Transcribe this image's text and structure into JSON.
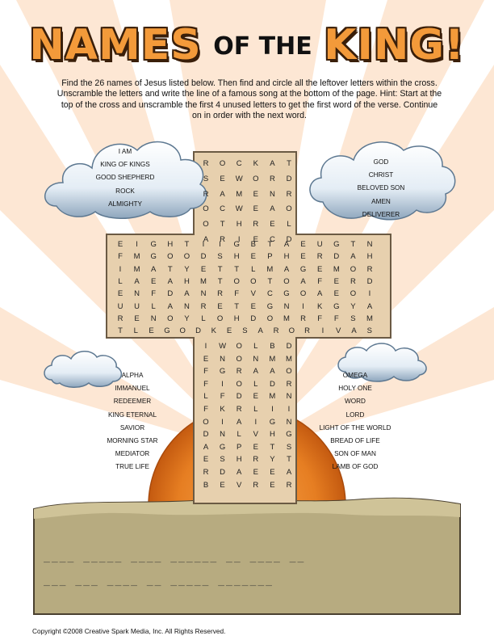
{
  "title": {
    "part1": "NAMES",
    "part2": "OF THE",
    "part3": "KING!"
  },
  "instructions": "Find the 26 names of Jesus listed below.  Then find and circle all the leftover letters within the cross.  Unscramble the letters and write the line of a famous song at the bottom of the page.  Hint:  Start at the top of the cross and unscramble the first 4 unused letters to get the first word of the verse.  Continue on in order with the next word.",
  "word_lists": {
    "top_left": [
      "I AM",
      "KING OF KINGS",
      "GOOD SHEPHERD",
      "ROCK",
      "ALMIGHTY"
    ],
    "top_right": [
      "GOD",
      "CHRIST",
      "BELOVED SON",
      "AMEN",
      "DELIVERER"
    ],
    "bottom_left": [
      "ALPHA",
      "IMMANUEL",
      "REDEEMER",
      "KING ETERNAL",
      "SAVIOR",
      "MORNING STAR",
      "MEDIATOR",
      "TRUE LIFE"
    ],
    "bottom_right": [
      "OMEGA",
      "HOLY ONE",
      "WORD",
      "LORD",
      "LIGHT OF THE WORLD",
      "BREAD OF LIFE",
      "SON OF MAN",
      "LAMB OF GOD"
    ]
  },
  "grid": {
    "top_rows": [
      "ROCKAT",
      "SEWORD",
      "RAMENR",
      "OCWEAO",
      "OTHREL",
      "ARIECD"
    ],
    "arm_rows": [
      "EIGHTIIGBTAEUGTN",
      "FMGOODSHEPHERDAH",
      "IMATYETTLMAGEMOR",
      "LAEAHMTOOTOAFERD",
      "ENFDANRFVCGOAEOI",
      "UULANRETEGNIKGYA",
      "RENOYLOHDOMRFFSM",
      "TLEGODKESARORIVAS"
    ],
    "bottom_rows": [
      "IWOLBD",
      "ENONMM",
      "FGRAAO",
      "FIOLDR",
      "LFDEMN",
      "FKRLII",
      "OIAIGN",
      "DNLVHG",
      "AGPETS",
      "ESHRYT",
      "RDAEEA",
      "BEVRER"
    ]
  },
  "answer_lines": {
    "line1": "____ _____ ____ ______ __ ____ __",
    "line2": "___ ___ ____ __ _____ _______"
  },
  "copyright": "Copyright ©2008 Creative Spark Media, Inc.  All Rights Reserved.",
  "colors": {
    "title_orange": "#f39a3a",
    "cross": "#e7d0ae",
    "ground": "#b7ab80",
    "sun": "#e67e22",
    "sky_rays": "#fde6d2"
  }
}
